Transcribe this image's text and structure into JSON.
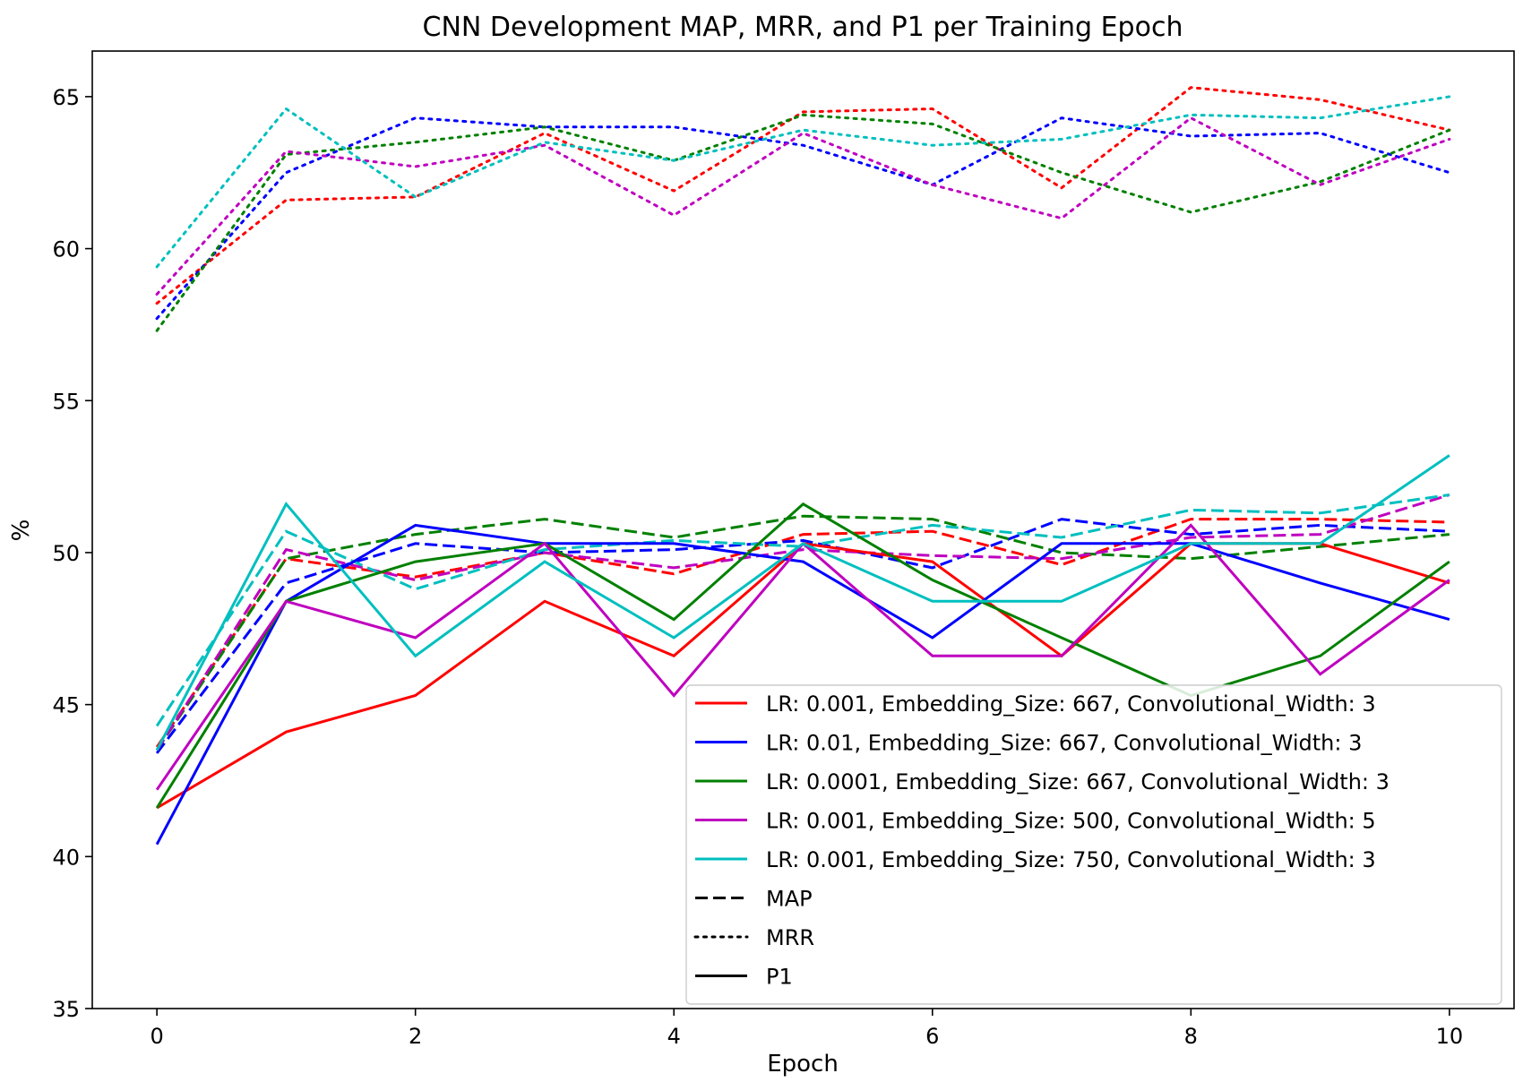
{
  "chart_data": {
    "type": "line",
    "title": "CNN Development MAP, MRR, and P1 per Training Epoch",
    "xlabel": "Epoch",
    "ylabel": "%",
    "xlim": [
      -0.5,
      10.5
    ],
    "ylim": [
      35,
      66.5
    ],
    "xticks": [
      0,
      2,
      4,
      6,
      8,
      10
    ],
    "yticks": [
      35,
      40,
      45,
      50,
      55,
      60,
      65
    ],
    "grid": false,
    "legend_position": "lower-right",
    "x": [
      0,
      1,
      2,
      3,
      4,
      5,
      6,
      7,
      8,
      9,
      10
    ],
    "configs": [
      {
        "name": "LR: 0.001, Embedding_Size: 667, Convolutional_Width: 3",
        "color": "#ff0000"
      },
      {
        "name": "LR: 0.01, Embedding_Size: 667, Convolutional_Width: 3",
        "color": "#0000ff"
      },
      {
        "name": "LR: 0.0001, Embedding_Size: 667, Convolutional_Width: 3",
        "color": "#008000"
      },
      {
        "name": "LR: 0.001, Embedding_Size: 500, Convolutional_Width: 5",
        "color": "#bf00bf"
      },
      {
        "name": "LR: 0.001, Embedding_Size: 750, Convolutional_Width: 3",
        "color": "#00bfbf"
      }
    ],
    "metrics": [
      {
        "name": "MAP",
        "dash": "dashed"
      },
      {
        "name": "MRR",
        "dash": "dotted"
      },
      {
        "name": "P1",
        "dash": "solid"
      }
    ],
    "series": [
      {
        "config": 0,
        "metric": "MRR",
        "values": [
          58.2,
          61.6,
          61.7,
          63.8,
          61.9,
          64.5,
          64.6,
          62.0,
          65.3,
          64.9,
          63.9
        ]
      },
      {
        "config": 1,
        "metric": "MRR",
        "values": [
          57.7,
          62.5,
          64.3,
          64.0,
          64.0,
          63.4,
          62.1,
          64.3,
          63.7,
          63.8,
          62.5
        ]
      },
      {
        "config": 2,
        "metric": "MRR",
        "values": [
          57.3,
          63.1,
          63.5,
          64.0,
          62.9,
          64.4,
          64.1,
          62.5,
          61.2,
          62.2,
          63.9
        ]
      },
      {
        "config": 3,
        "metric": "MRR",
        "values": [
          58.5,
          63.2,
          62.7,
          63.4,
          61.1,
          63.8,
          62.1,
          61.0,
          64.3,
          62.1,
          63.6
        ]
      },
      {
        "config": 4,
        "metric": "MRR",
        "values": [
          59.4,
          64.6,
          61.7,
          63.5,
          62.9,
          63.9,
          63.4,
          63.6,
          64.4,
          64.3,
          65.0
        ]
      },
      {
        "config": 0,
        "metric": "MAP",
        "values": [
          43.6,
          49.8,
          49.2,
          50.0,
          49.3,
          50.6,
          50.7,
          49.6,
          51.1,
          51.1,
          51.0
        ]
      },
      {
        "config": 1,
        "metric": "MAP",
        "values": [
          43.4,
          49.0,
          50.3,
          50.0,
          50.1,
          50.4,
          49.5,
          51.1,
          50.6,
          50.9,
          50.7
        ]
      },
      {
        "config": 2,
        "metric": "MAP",
        "values": [
          43.5,
          49.8,
          50.6,
          51.1,
          50.5,
          51.2,
          51.1,
          50.0,
          49.8,
          50.2,
          50.6
        ]
      },
      {
        "config": 3,
        "metric": "MAP",
        "values": [
          43.5,
          50.1,
          49.1,
          50.0,
          49.5,
          50.1,
          49.9,
          49.8,
          50.5,
          50.6,
          51.9
        ]
      },
      {
        "config": 4,
        "metric": "MAP",
        "values": [
          44.3,
          50.7,
          48.8,
          50.1,
          50.4,
          50.2,
          50.9,
          50.5,
          51.4,
          51.3,
          51.9
        ]
      },
      {
        "config": 0,
        "metric": "P1",
        "values": [
          41.6,
          44.1,
          45.3,
          48.4,
          46.6,
          50.3,
          49.7,
          46.6,
          50.3,
          50.3,
          49.0
        ]
      },
      {
        "config": 1,
        "metric": "P1",
        "values": [
          40.4,
          48.4,
          50.9,
          50.3,
          50.3,
          49.7,
          47.2,
          50.3,
          50.3,
          49.0,
          47.8
        ]
      },
      {
        "config": 2,
        "metric": "P1",
        "values": [
          41.6,
          48.4,
          49.7,
          50.3,
          47.8,
          51.6,
          49.1,
          47.2,
          45.3,
          46.6,
          49.7
        ]
      },
      {
        "config": 3,
        "metric": "P1",
        "values": [
          42.2,
          48.4,
          47.2,
          50.3,
          45.3,
          50.3,
          46.6,
          46.6,
          50.9,
          46.0,
          49.1
        ]
      },
      {
        "config": 4,
        "metric": "P1",
        "values": [
          43.5,
          51.6,
          46.6,
          49.7,
          47.2,
          50.3,
          48.4,
          48.4,
          50.3,
          50.3,
          53.2
        ]
      }
    ]
  }
}
